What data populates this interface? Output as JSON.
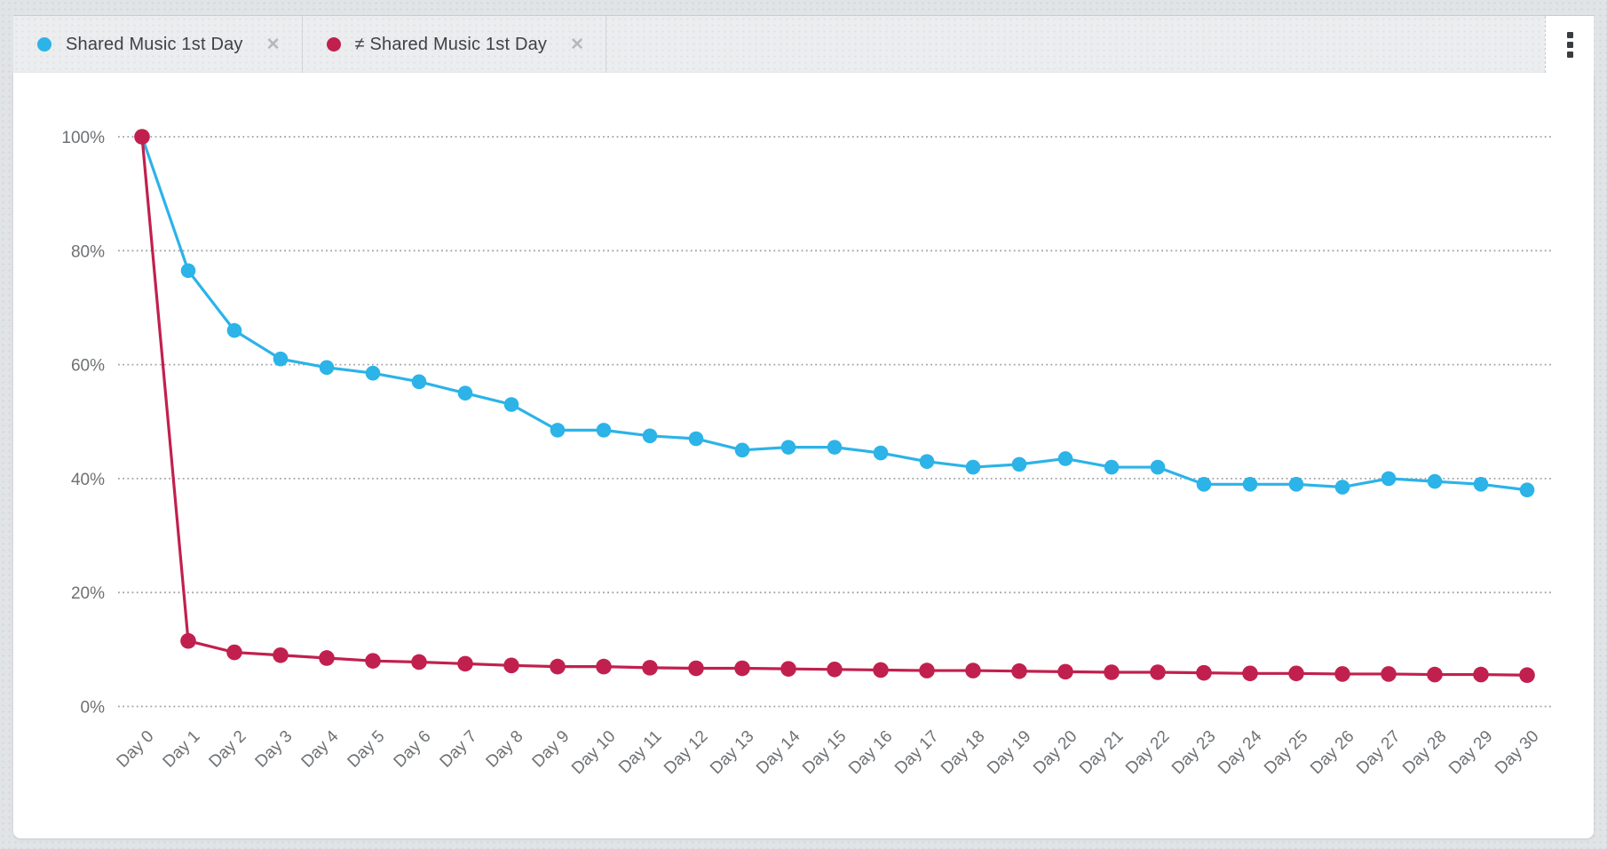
{
  "header": {
    "tabs": [
      {
        "label": "Shared Music 1st Day",
        "close_glyph": "✕"
      },
      {
        "label": "≠ Shared Music 1st Day",
        "close_glyph": "✕"
      }
    ],
    "menu_icon": "kebab-vertical"
  },
  "chart_data": {
    "type": "line",
    "title": "",
    "xlabel": "",
    "ylabel": "",
    "x": [
      "Day 0",
      "Day 1",
      "Day 2",
      "Day 3",
      "Day 4",
      "Day 5",
      "Day 6",
      "Day 7",
      "Day 8",
      "Day 9",
      "Day 10",
      "Day 11",
      "Day 12",
      "Day 13",
      "Day 14",
      "Day 15",
      "Day 16",
      "Day 17",
      "Day 18",
      "Day 19",
      "Day 20",
      "Day 21",
      "Day 22",
      "Day 23",
      "Day 24",
      "Day 25",
      "Day 26",
      "Day 27",
      "Day 28",
      "Day 29",
      "Day 30"
    ],
    "series": [
      {
        "name": "Shared Music 1st Day",
        "color": "#2cb3e8",
        "values": [
          100,
          76.5,
          66,
          61,
          59.5,
          58.5,
          57,
          55,
          53,
          48.5,
          48.5,
          47.5,
          47,
          45,
          45.5,
          45.5,
          44.5,
          43,
          42,
          42.5,
          43.5,
          42,
          42,
          39,
          39,
          39,
          38.5,
          40,
          39.5,
          39,
          38
        ]
      },
      {
        "name": "≠ Shared Music 1st Day",
        "color": "#c1204e",
        "values": [
          100,
          11.5,
          9.5,
          9,
          8.5,
          8,
          7.8,
          7.5,
          7.2,
          7,
          7,
          6.8,
          6.7,
          6.7,
          6.6,
          6.5,
          6.4,
          6.3,
          6.3,
          6.2,
          6.1,
          6,
          6,
          5.9,
          5.8,
          5.8,
          5.7,
          5.7,
          5.6,
          5.6,
          5.5
        ]
      }
    ],
    "ylim": [
      0,
      100
    ],
    "yticks": [
      {
        "value": 0,
        "label": "0%"
      },
      {
        "value": 20,
        "label": "20%"
      },
      {
        "value": 40,
        "label": "40%"
      },
      {
        "value": 60,
        "label": "60%"
      },
      {
        "value": 80,
        "label": "80%"
      },
      {
        "value": 100,
        "label": "100%"
      }
    ],
    "grid": "horizontal-dotted",
    "legend_position": "top-tabs",
    "colors": {
      "grid": "#9fa3a7",
      "axis_text": "#6e7174"
    }
  }
}
